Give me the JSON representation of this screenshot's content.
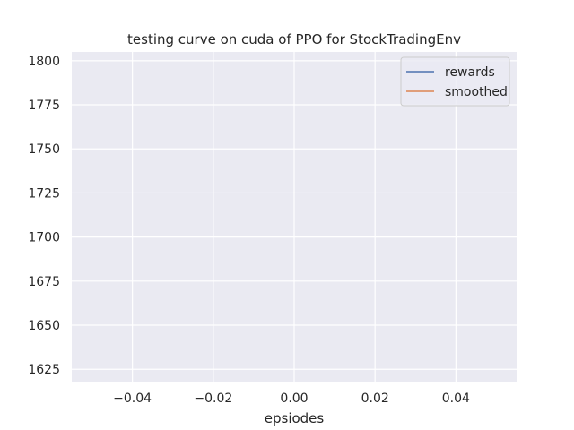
{
  "chart_data": {
    "type": "line",
    "title": "testing curve on cuda of PPO for StockTradingEnv",
    "xlabel": "epsiodes",
    "ylabel": "",
    "xlim": [
      -0.055,
      0.055
    ],
    "ylim": [
      1618,
      1805
    ],
    "x_ticks": [
      -0.04,
      -0.02,
      0.0,
      0.02,
      0.04
    ],
    "x_tick_labels": [
      "−0.04",
      "−0.02",
      "0.00",
      "0.02",
      "0.04"
    ],
    "y_ticks": [
      1625,
      1650,
      1675,
      1700,
      1725,
      1750,
      1775,
      1800
    ],
    "y_tick_labels": [
      "1625",
      "1650",
      "1675",
      "1700",
      "1725",
      "1750",
      "1775",
      "1800"
    ],
    "grid": true,
    "legend_position": "top-right",
    "background_color": "#eaeaf2",
    "grid_color": "#ffffff",
    "series": [
      {
        "name": "rewards",
        "color": "#4c72b0",
        "x": [],
        "y": []
      },
      {
        "name": "smoothed",
        "color": "#dd8452",
        "x": [],
        "y": []
      }
    ]
  }
}
